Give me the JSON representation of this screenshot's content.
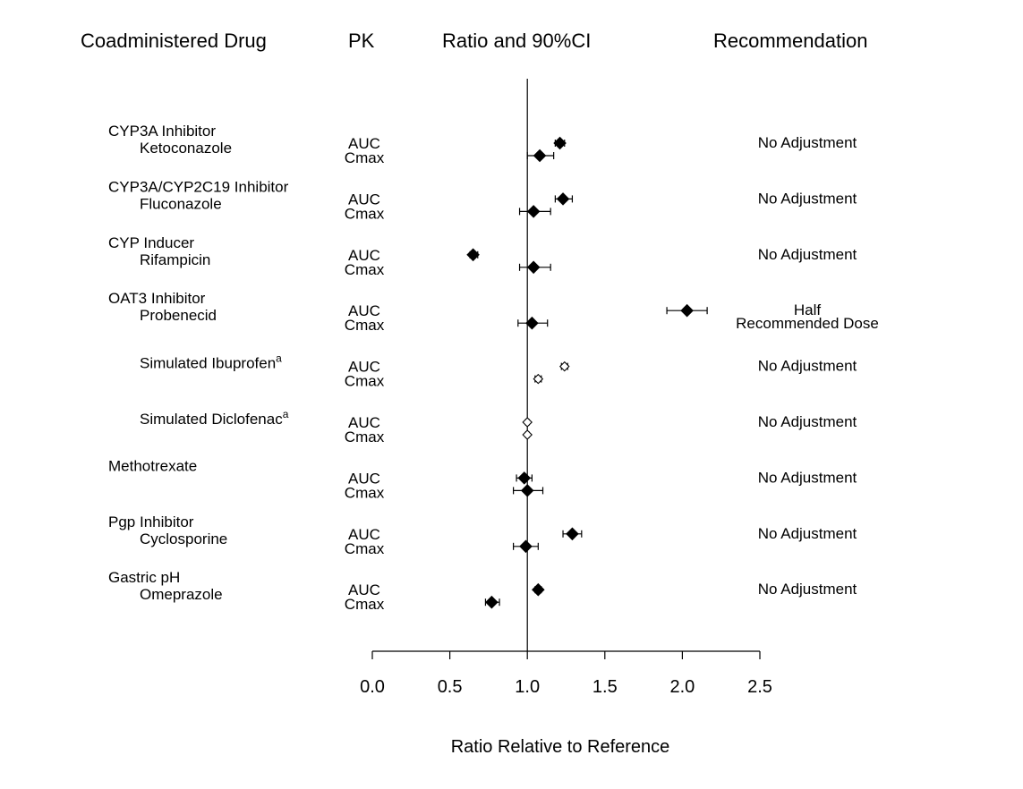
{
  "headers": {
    "drug": "Coadministered Drug",
    "pk": "PK",
    "ratio": "Ratio and 90%CI",
    "recommendation": "Recommendation"
  },
  "chart_data": {
    "type": "forest",
    "xlabel": "Ratio Relative to Reference",
    "xlim": [
      0.0,
      2.5
    ],
    "ticks": [
      "0.0",
      "0.5",
      "1.0",
      "1.5",
      "2.0",
      "2.5"
    ],
    "reference_line": 1.0,
    "rows": [
      {
        "category": "CYP3A Inhibitor",
        "drug": "Ketoconazole",
        "superscript": "",
        "recommendation": [
          "No Adjustment"
        ],
        "pk": [
          {
            "param": "AUC",
            "ratio": 1.21,
            "lo": 1.18,
            "hi": 1.24,
            "filled": true
          },
          {
            "param": "Cmax",
            "ratio": 1.08,
            "lo": 1.0,
            "hi": 1.17,
            "filled": true
          }
        ]
      },
      {
        "category": "CYP3A/CYP2C19 Inhibitor",
        "drug": "Fluconazole",
        "superscript": "",
        "recommendation": [
          "No Adjustment"
        ],
        "pk": [
          {
            "param": "AUC",
            "ratio": 1.23,
            "lo": 1.18,
            "hi": 1.29,
            "filled": true
          },
          {
            "param": "Cmax",
            "ratio": 1.04,
            "lo": 0.95,
            "hi": 1.15,
            "filled": true
          }
        ]
      },
      {
        "category": "CYP Inducer",
        "drug": "Rifampicin",
        "superscript": "",
        "recommendation": [
          "No Adjustment"
        ],
        "pk": [
          {
            "param": "AUC",
            "ratio": 0.65,
            "lo": 0.63,
            "hi": 0.68,
            "filled": true
          },
          {
            "param": "Cmax",
            "ratio": 1.04,
            "lo": 0.95,
            "hi": 1.15,
            "filled": true
          }
        ]
      },
      {
        "category": "OAT3 Inhibitor",
        "drug": "Probenecid",
        "superscript": "",
        "recommendation": [
          "Half",
          "Recommended Dose"
        ],
        "pk": [
          {
            "param": "AUC",
            "ratio": 2.03,
            "lo": 1.9,
            "hi": 2.16,
            "filled": true
          },
          {
            "param": "Cmax",
            "ratio": 1.03,
            "lo": 0.94,
            "hi": 1.13,
            "filled": true
          }
        ]
      },
      {
        "category": "",
        "drug": "Simulated Ibuprofen",
        "superscript": "a",
        "recommendation": [
          "No Adjustment"
        ],
        "pk": [
          {
            "param": "AUC",
            "ratio": 1.24,
            "lo": 1.22,
            "hi": 1.26,
            "filled": false
          },
          {
            "param": "Cmax",
            "ratio": 1.07,
            "lo": 1.05,
            "hi": 1.09,
            "filled": false
          }
        ]
      },
      {
        "category": "",
        "drug": "Simulated Diclofenac",
        "superscript": "a",
        "recommendation": [
          "No Adjustment"
        ],
        "pk": [
          {
            "param": "AUC",
            "ratio": 1.0,
            "lo": 0.99,
            "hi": 1.01,
            "filled": false
          },
          {
            "param": "Cmax",
            "ratio": 1.0,
            "lo": 0.99,
            "hi": 1.01,
            "filled": false
          }
        ]
      },
      {
        "category": "Methotrexate",
        "drug": "",
        "superscript": "",
        "recommendation": [
          "No Adjustment"
        ],
        "pk": [
          {
            "param": "AUC",
            "ratio": 0.98,
            "lo": 0.93,
            "hi": 1.03,
            "filled": true
          },
          {
            "param": "Cmax",
            "ratio": 1.0,
            "lo": 0.91,
            "hi": 1.1,
            "filled": true
          }
        ]
      },
      {
        "category": "Pgp Inhibitor",
        "drug": "Cyclosporine",
        "superscript": "",
        "recommendation": [
          "No Adjustment"
        ],
        "pk": [
          {
            "param": "AUC",
            "ratio": 1.29,
            "lo": 1.23,
            "hi": 1.35,
            "filled": true
          },
          {
            "param": "Cmax",
            "ratio": 0.99,
            "lo": 0.91,
            "hi": 1.07,
            "filled": true
          }
        ]
      },
      {
        "category": "Gastric pH",
        "drug": "Omeprazole",
        "superscript": "",
        "recommendation": [
          "No Adjustment"
        ],
        "pk": [
          {
            "param": "AUC",
            "ratio": 1.07,
            "lo": 1.05,
            "hi": 1.09,
            "filled": true
          },
          {
            "param": "Cmax",
            "ratio": 0.77,
            "lo": 0.73,
            "hi": 0.82,
            "filled": true
          }
        ]
      }
    ]
  }
}
